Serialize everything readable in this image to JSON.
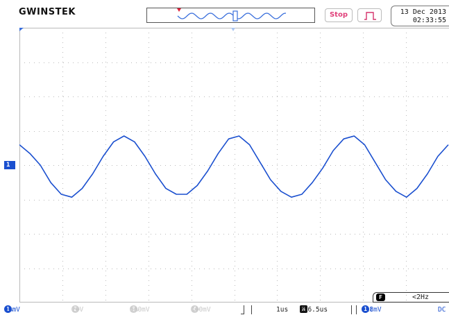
{
  "header": {
    "brand": "GWINSTEK",
    "run_status": "Stop",
    "date": "13 Dec 2013",
    "time": "02:33:55"
  },
  "screen": {
    "channel_marker": "1",
    "trace_color": "#1a4fcf",
    "grid_color": "#b9b9b9"
  },
  "status_bar": {
    "ch1_num": "1",
    "ch1_coupling_icon": "ac-wave-icon",
    "ch1_scale": "50mV",
    "ch2_num": "2",
    "ch2_scale": "10V",
    "ch3_num": "3",
    "ch3_scale": "500mV",
    "ch4_num": "4",
    "ch4_scale": "100mV",
    "timebase": "1us",
    "h_label": "H",
    "h_position": "256.5us",
    "trig_source": "1",
    "trig_level": "218mV",
    "trig_coupling": "DC"
  },
  "frequency": {
    "badge": "F",
    "value": "<2Hz"
  },
  "chart_data": {
    "type": "line",
    "series": [
      {
        "values": [
          0.7,
          0.4,
          0.0,
          -0.6,
          -1.0,
          -1.1,
          -0.8,
          -0.3,
          0.3,
          0.8,
          1.0,
          0.8,
          0.3,
          -0.3,
          -0.8,
          -1.0,
          -1.0,
          -0.7,
          -0.2,
          0.4,
          0.9,
          1.0,
          0.7,
          0.1,
          -0.5,
          -0.9,
          -1.1,
          -1.0,
          -0.6,
          -0.1,
          0.5,
          0.9,
          1.0,
          0.7,
          0.1,
          -0.5,
          -0.9,
          -1.1,
          -0.8,
          -0.3,
          0.3,
          0.7
        ]
      }
    ]
  }
}
